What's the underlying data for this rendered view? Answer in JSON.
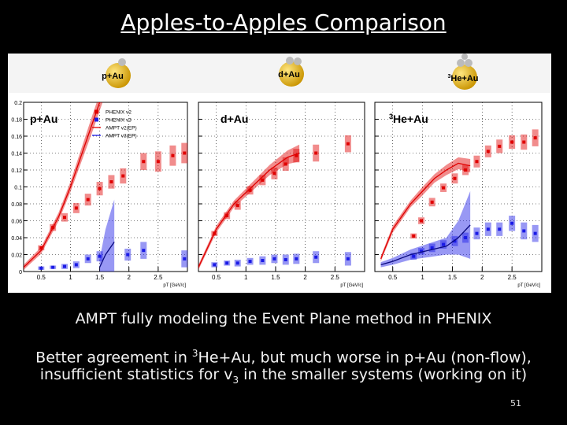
{
  "title": "Apples-to-Apples Comparison",
  "header_labels": [
    {
      "text": "p+Au"
    },
    {
      "text": "d+Au"
    },
    {
      "sup": "3",
      "text": "He+Au"
    }
  ],
  "chart_data": [
    {
      "type": "scatter",
      "title": "p+Au",
      "x_label": "pT [GeV/c]",
      "xlim": [
        0.2,
        3.0
      ],
      "ylim": [
        0,
        0.2
      ],
      "xticks": [
        0.5,
        1,
        1.5,
        2,
        2.5
      ],
      "yticks": [
        0,
        0.02,
        0.04,
        0.06,
        0.08,
        0.1,
        0.12,
        0.14,
        0.16,
        0.18,
        0.2
      ],
      "ytick_labels": true,
      "grid": true,
      "legend": "top",
      "series": [
        {
          "name": "PHENIX v2",
          "style": "points",
          "color": "#e00000",
          "x": [
            0.5,
            0.7,
            0.9,
            1.1,
            1.3,
            1.5,
            1.7,
            1.9,
            2.25,
            2.5,
            2.75,
            2.95
          ],
          "values": [
            0.028,
            0.052,
            0.064,
            0.075,
            0.085,
            0.098,
            0.106,
            0.113,
            0.13,
            0.13,
            0.137,
            0.14
          ],
          "errors": [
            0.003,
            0.004,
            0.005,
            0.006,
            0.007,
            0.008,
            0.008,
            0.009,
            0.01,
            0.012,
            0.012,
            0.012
          ]
        },
        {
          "name": "PHENIX v3",
          "style": "points",
          "color": "#1a1ae6",
          "x": [
            0.5,
            0.7,
            0.9,
            1.1,
            1.3,
            1.5,
            1.98,
            2.25,
            2.95
          ],
          "values": [
            0.004,
            0.005,
            0.006,
            0.008,
            0.015,
            0.018,
            0.02,
            0.025,
            0.015
          ],
          "errors": [
            0.002,
            0.002,
            0.003,
            0.004,
            0.005,
            0.006,
            0.007,
            0.01,
            0.01
          ]
        },
        {
          "name": "AMPT v2(EP)",
          "style": "line",
          "color": "#e00000",
          "x": [
            0.2,
            0.5,
            0.8,
            1.0,
            1.2,
            1.4,
            1.55
          ],
          "values": [
            0.005,
            0.025,
            0.065,
            0.1,
            0.14,
            0.18,
            0.21
          ],
          "errors": [
            0.003,
            0.004,
            0.005,
            0.006,
            0.008,
            0.01,
            0.01
          ]
        },
        {
          "name": "AMPT v3(EP)",
          "style": "line",
          "color": "#1a1ae6",
          "x": [
            1.5,
            1.6,
            1.75
          ],
          "values": [
            0.005,
            0.02,
            0.035
          ],
          "errors": [
            0.01,
            0.03,
            0.05
          ]
        }
      ]
    },
    {
      "type": "scatter",
      "title": "d+Au",
      "x_label": "pT [GeV/c]",
      "xlim": [
        0.2,
        3.0
      ],
      "ylim": [
        0,
        0.2
      ],
      "xticks": [
        0.5,
        1,
        1.5,
        2,
        2.5
      ],
      "yticks": [
        0,
        0.02,
        0.04,
        0.06,
        0.08,
        0.1,
        0.12,
        0.14,
        0.16,
        0.18,
        0.2
      ],
      "ytick_labels": false,
      "grid": true,
      "series": [
        {
          "style": "points",
          "color": "#e00000",
          "x": [
            0.47,
            0.68,
            0.86,
            1.07,
            1.28,
            1.48,
            1.67,
            1.85,
            2.18,
            2.72
          ],
          "values": [
            0.045,
            0.066,
            0.078,
            0.096,
            0.108,
            0.116,
            0.127,
            0.137,
            0.14,
            0.151
          ],
          "errors": [
            0.003,
            0.004,
            0.005,
            0.005,
            0.006,
            0.007,
            0.008,
            0.008,
            0.01,
            0.01
          ]
        },
        {
          "style": "points",
          "color": "#1a1ae6",
          "x": [
            0.47,
            0.68,
            0.86,
            1.07,
            1.28,
            1.48,
            1.67,
            1.85,
            2.18,
            2.72
          ],
          "values": [
            0.008,
            0.01,
            0.01,
            0.012,
            0.013,
            0.015,
            0.014,
            0.015,
            0.017,
            0.015
          ],
          "errors": [
            0.003,
            0.003,
            0.004,
            0.004,
            0.005,
            0.005,
            0.006,
            0.006,
            0.007,
            0.008
          ]
        },
        {
          "style": "line",
          "color": "#e00000",
          "x": [
            0.2,
            0.5,
            0.8,
            1.1,
            1.4,
            1.7,
            1.9
          ],
          "values": [
            0.005,
            0.05,
            0.08,
            0.1,
            0.12,
            0.135,
            0.14
          ],
          "errors": [
            0.003,
            0.004,
            0.004,
            0.005,
            0.006,
            0.008,
            0.01
          ]
        }
      ]
    },
    {
      "type": "scatter",
      "title_sup": "3",
      "title": "He+Au",
      "x_label": "pT [GeV/c]",
      "xlim": [
        0.2,
        3.0
      ],
      "ylim": [
        0,
        0.2
      ],
      "xticks": [
        0.5,
        1,
        1.5,
        2,
        2.5
      ],
      "yticks": [
        0,
        0.02,
        0.04,
        0.06,
        0.08,
        0.1,
        0.12,
        0.14,
        0.16,
        0.18,
        0.2
      ],
      "ytick_labels": false,
      "grid": true,
      "series": [
        {
          "style": "points",
          "color": "#e00000",
          "x": [
            0.85,
            0.98,
            1.16,
            1.35,
            1.54,
            1.72,
            1.91,
            2.1,
            2.29,
            2.5,
            2.7,
            2.89
          ],
          "values": [
            0.042,
            0.06,
            0.082,
            0.099,
            0.11,
            0.12,
            0.13,
            0.142,
            0.148,
            0.153,
            0.153,
            0.158
          ],
          "errors": [
            0.003,
            0.004,
            0.005,
            0.005,
            0.006,
            0.006,
            0.007,
            0.007,
            0.008,
            0.008,
            0.009,
            0.01
          ]
        },
        {
          "style": "points",
          "color": "#1a1ae6",
          "x": [
            0.85,
            0.98,
            1.16,
            1.35,
            1.54,
            1.72,
            1.91,
            2.1,
            2.29,
            2.5,
            2.7,
            2.89
          ],
          "values": [
            0.018,
            0.024,
            0.028,
            0.032,
            0.036,
            0.04,
            0.045,
            0.05,
            0.05,
            0.057,
            0.048,
            0.045
          ],
          "errors": [
            0.004,
            0.004,
            0.005,
            0.005,
            0.006,
            0.006,
            0.007,
            0.008,
            0.008,
            0.009,
            0.01,
            0.01
          ]
        },
        {
          "style": "line",
          "color": "#e00000",
          "x": [
            0.3,
            0.5,
            0.8,
            1.0,
            1.2,
            1.4,
            1.6,
            1.8
          ],
          "values": [
            0.015,
            0.05,
            0.08,
            0.095,
            0.11,
            0.12,
            0.128,
            0.125
          ],
          "errors": [
            0.003,
            0.004,
            0.004,
            0.005,
            0.005,
            0.006,
            0.007,
            0.008
          ]
        },
        {
          "style": "line",
          "color": "#1a1ae6",
          "x": [
            0.3,
            0.5,
            0.8,
            1.1,
            1.4,
            1.6,
            1.8
          ],
          "values": [
            0.008,
            0.012,
            0.02,
            0.025,
            0.03,
            0.04,
            0.055
          ],
          "errors": [
            0.003,
            0.004,
            0.006,
            0.008,
            0.01,
            0.02,
            0.04
          ]
        }
      ]
    }
  ],
  "notes": [
    {
      "parts": [
        "AMPT fully modeling the Event Plane method in PHENIX"
      ]
    },
    {
      "parts": [
        "Better agreement in ",
        "3",
        "He+Au, but much worse in p+Au (non-flow),"
      ]
    },
    {
      "parts": [
        "insufficient statistics for v",
        "3",
        " in the smaller systems (working on it)"
      ]
    }
  ],
  "page_number": "51"
}
